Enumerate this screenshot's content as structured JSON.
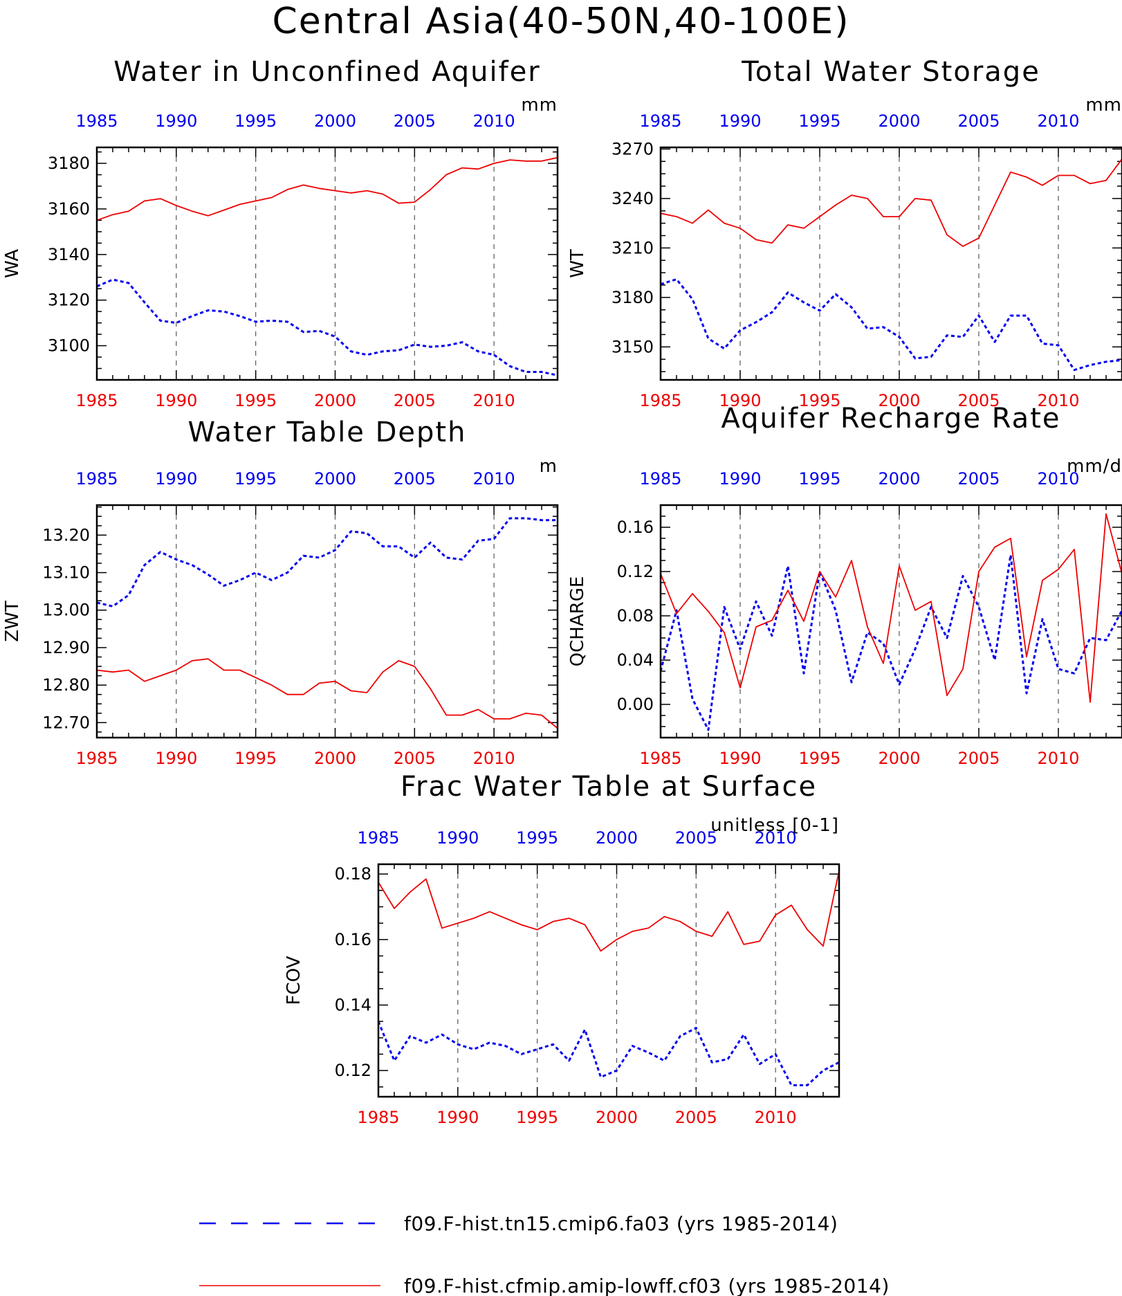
{
  "title": "Central Asia(40-50N,40-100E)",
  "colors": {
    "series_a": "#0000ee",
    "series_b": "#ee0000",
    "axis": "#000000"
  },
  "legend": [
    {
      "label": "f09.F-hist.tn15.cmip6.fa03 (yrs 1985-2014)",
      "color": "#0000ee",
      "style": "dashed"
    },
    {
      "label": "f09.F-hist.cfmip.amip-lowff.cf03 (yrs 1985-2014)",
      "color": "#ee0000",
      "style": "solid"
    }
  ],
  "chart_data": [
    {
      "type": "line",
      "title": "Water in Unconfined Aquifer",
      "ylabel": "WA",
      "unit": "mm",
      "x": [
        1985,
        1986,
        1987,
        1988,
        1989,
        1990,
        1991,
        1992,
        1993,
        1994,
        1995,
        1996,
        1997,
        1998,
        1999,
        2000,
        2001,
        2002,
        2003,
        2004,
        2005,
        2006,
        2007,
        2008,
        2009,
        2010,
        2011,
        2012,
        2013,
        2014
      ],
      "xlim": [
        1985,
        2014
      ],
      "xticks": [
        1985,
        1990,
        1995,
        2000,
        2005,
        2010
      ],
      "ylim": [
        3085,
        3187
      ],
      "yticks": [
        3100,
        3120,
        3140,
        3160,
        3180
      ],
      "ytick_labels": [
        "3100",
        "3120",
        "3140",
        "3160",
        "3180"
      ],
      "series": [
        {
          "values": [
            3126,
            3129,
            3127.5,
            3119,
            3111,
            3110,
            3113,
            3115.5,
            3115,
            3113,
            3110.5,
            3111,
            3110.5,
            3106,
            3106.5,
            3104,
            3097.5,
            3096,
            3097.5,
            3098,
            3100.5,
            3099.5,
            3100,
            3101.5,
            3097.5,
            3096,
            3091,
            3088.5,
            3088.5,
            3087
          ]
        },
        {
          "values": [
            3155,
            3157.5,
            3159,
            3163.5,
            3164.5,
            3161.5,
            3159,
            3157,
            3159.5,
            3162,
            3163.5,
            3165,
            3168.5,
            3170.5,
            3169,
            3168,
            3167,
            3168,
            3166.5,
            3162.5,
            3163,
            3168.5,
            3175,
            3178,
            3177.5,
            3180,
            3181.5,
            3181,
            3181,
            3182.5
          ]
        }
      ]
    },
    {
      "type": "line",
      "title": "Total Water Storage",
      "ylabel": "WT",
      "unit": "mm",
      "x": [
        1985,
        1986,
        1987,
        1988,
        1989,
        1990,
        1991,
        1992,
        1993,
        1994,
        1995,
        1996,
        1997,
        1998,
        1999,
        2000,
        2001,
        2002,
        2003,
        2004,
        2005,
        2006,
        2007,
        2008,
        2009,
        2010,
        2011,
        2012,
        2013,
        2014
      ],
      "xlim": [
        1985,
        2014
      ],
      "xticks": [
        1985,
        1990,
        1995,
        2000,
        2005,
        2010
      ],
      "ylim": [
        3130,
        3271
      ],
      "yticks": [
        3150,
        3180,
        3210,
        3240,
        3270
      ],
      "ytick_labels": [
        "3150",
        "3180",
        "3210",
        "3240",
        "3270"
      ],
      "series": [
        {
          "values": [
            3188,
            3191,
            3179,
            3155,
            3149,
            3160,
            3165,
            3171,
            3183,
            3177,
            3172,
            3182,
            3174,
            3161,
            3162,
            3156,
            3143,
            3144,
            3157,
            3156,
            3169,
            3153,
            3169,
            3169,
            3152,
            3151,
            3136,
            3139,
            3141,
            3142
          ]
        },
        {
          "values": [
            3231,
            3229,
            3225,
            3233,
            3225,
            3222,
            3215,
            3213,
            3224,
            3222,
            3229,
            3236,
            3242,
            3240,
            3229,
            3229,
            3240,
            3239,
            3218,
            3211,
            3216,
            3236,
            3256,
            3253,
            3248,
            3254,
            3254,
            3249,
            3251,
            3264
          ]
        }
      ]
    },
    {
      "type": "line",
      "title": "Water Table Depth",
      "ylabel": "ZWT",
      "unit": "m",
      "x": [
        1985,
        1986,
        1987,
        1988,
        1989,
        1990,
        1991,
        1992,
        1993,
        1994,
        1995,
        1996,
        1997,
        1998,
        1999,
        2000,
        2001,
        2002,
        2003,
        2004,
        2005,
        2006,
        2007,
        2008,
        2009,
        2010,
        2011,
        2012,
        2013,
        2014
      ],
      "xlim": [
        1985,
        2014
      ],
      "xticks": [
        1985,
        1990,
        1995,
        2000,
        2005,
        2010
      ],
      "ylim": [
        12.66,
        13.28
      ],
      "yticks": [
        12.7,
        12.8,
        12.9,
        13.0,
        13.1,
        13.2
      ],
      "ytick_labels": [
        "12.70",
        "12.80",
        "12.90",
        "13.00",
        "13.10",
        "13.20"
      ],
      "series": [
        {
          "values": [
            13.02,
            13.01,
            13.04,
            13.12,
            13.155,
            13.135,
            13.12,
            13.095,
            13.065,
            13.08,
            13.1,
            13.08,
            13.1,
            13.145,
            13.14,
            13.16,
            13.21,
            13.205,
            13.17,
            13.17,
            13.14,
            13.18,
            13.14,
            13.135,
            13.185,
            13.19,
            13.245,
            13.245,
            13.24,
            13.24
          ]
        },
        {
          "values": [
            12.84,
            12.835,
            12.84,
            12.81,
            12.825,
            12.84,
            12.865,
            12.87,
            12.84,
            12.84,
            12.82,
            12.8,
            12.775,
            12.775,
            12.805,
            12.81,
            12.785,
            12.78,
            12.835,
            12.865,
            12.85,
            12.79,
            12.72,
            12.72,
            12.735,
            12.71,
            12.71,
            12.725,
            12.72,
            12.685
          ]
        }
      ]
    },
    {
      "type": "line",
      "title": "Aquifer Recharge Rate",
      "ylabel": "QCHARGE",
      "unit": "mm/d",
      "x": [
        1985,
        1986,
        1987,
        1988,
        1989,
        1990,
        1991,
        1992,
        1993,
        1994,
        1995,
        1996,
        1997,
        1998,
        1999,
        2000,
        2001,
        2002,
        2003,
        2004,
        2005,
        2006,
        2007,
        2008,
        2009,
        2010,
        2011,
        2012,
        2013,
        2014
      ],
      "xlim": [
        1985,
        2014
      ],
      "xticks": [
        1985,
        1990,
        1995,
        2000,
        2005,
        2010
      ],
      "ylim": [
        -0.03,
        0.18
      ],
      "yticks": [
        0.0,
        0.04,
        0.08,
        0.12,
        0.16
      ],
      "ytick_labels": [
        "0.00",
        "0.04",
        "0.08",
        "0.12",
        "0.16"
      ],
      "series": [
        {
          "values": [
            0.03,
            0.085,
            0.005,
            -0.023,
            0.088,
            0.05,
            0.093,
            0.062,
            0.125,
            0.028,
            0.12,
            0.085,
            0.02,
            0.065,
            0.055,
            0.018,
            0.05,
            0.088,
            0.06,
            0.116,
            0.088,
            0.04,
            0.135,
            0.01,
            0.077,
            0.032,
            0.028,
            0.06,
            0.058,
            0.085
          ]
        },
        {
          "values": [
            0.118,
            0.082,
            0.1,
            0.084,
            0.065,
            0.015,
            0.07,
            0.076,
            0.103,
            0.075,
            0.12,
            0.097,
            0.13,
            0.07,
            0.037,
            0.125,
            0.085,
            0.093,
            0.008,
            0.032,
            0.12,
            0.142,
            0.15,
            0.043,
            0.112,
            0.122,
            0.14,
            0.002,
            0.172,
            0.118
          ]
        }
      ]
    },
    {
      "type": "line",
      "title": "Frac Water Table at Surface",
      "ylabel": "FCOV",
      "unit": "unitless [0-1]",
      "x": [
        1985,
        1986,
        1987,
        1988,
        1989,
        1990,
        1991,
        1992,
        1993,
        1994,
        1995,
        1996,
        1997,
        1998,
        1999,
        2000,
        2001,
        2002,
        2003,
        2004,
        2005,
        2006,
        2007,
        2008,
        2009,
        2010,
        2011,
        2012,
        2013,
        2014
      ],
      "xlim": [
        1985,
        2014
      ],
      "xticks": [
        1985,
        1990,
        1995,
        2000,
        2005,
        2010
      ],
      "ylim": [
        0.112,
        0.183
      ],
      "yticks": [
        0.12,
        0.14,
        0.16,
        0.18
      ],
      "ytick_labels": [
        "0.12",
        "0.14",
        "0.16",
        "0.18"
      ],
      "series": [
        {
          "values": [
            0.135,
            0.123,
            0.1305,
            0.1285,
            0.131,
            0.128,
            0.1265,
            0.1285,
            0.1275,
            0.125,
            0.1265,
            0.128,
            0.123,
            0.1325,
            0.118,
            0.12,
            0.1275,
            0.1255,
            0.123,
            0.1305,
            0.133,
            0.1225,
            0.1235,
            0.131,
            0.122,
            0.125,
            0.1155,
            0.1155,
            0.12,
            0.1225
          ]
        },
        {
          "values": [
            0.1775,
            0.1695,
            0.1745,
            0.1785,
            0.1635,
            0.165,
            0.1665,
            0.1685,
            0.1665,
            0.1645,
            0.163,
            0.1655,
            0.1665,
            0.1645,
            0.1565,
            0.16,
            0.1625,
            0.1635,
            0.167,
            0.1655,
            0.1625,
            0.161,
            0.1685,
            0.1585,
            0.1595,
            0.1675,
            0.1705,
            0.163,
            0.158,
            0.181
          ]
        }
      ]
    }
  ]
}
